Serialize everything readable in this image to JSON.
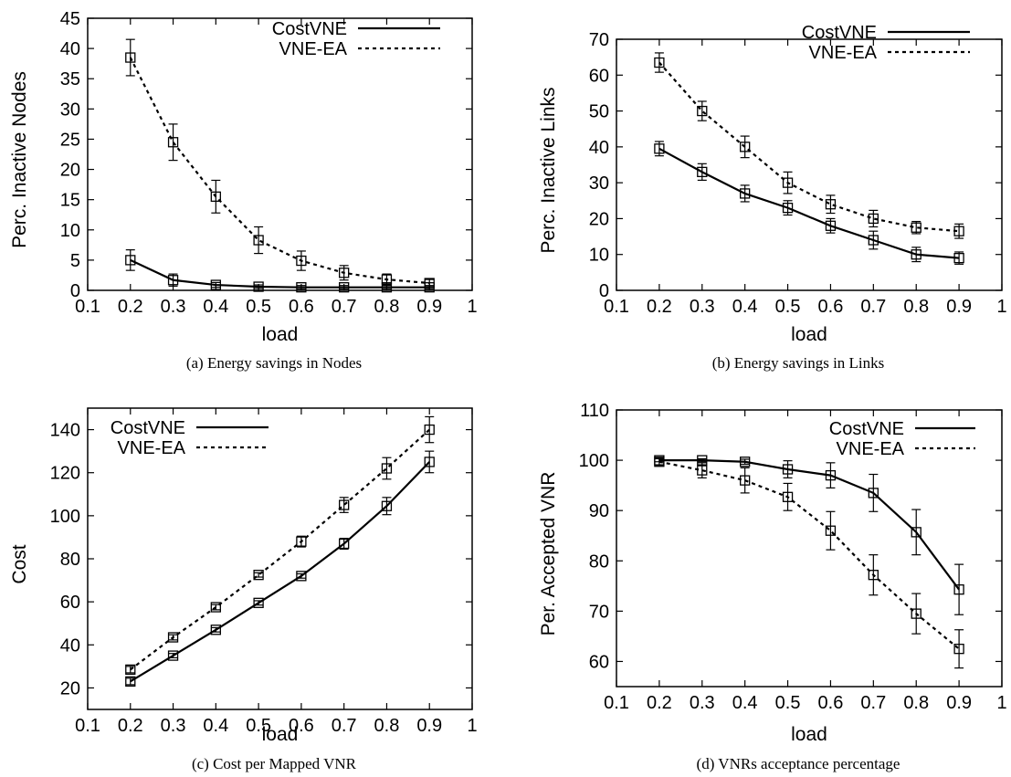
{
  "chart_data": [
    {
      "type": "line",
      "caption": "(a) Energy savings in Nodes",
      "xlabel": "load",
      "ylabel": "Perc. Inactive Nodes",
      "xlim": [
        0.1,
        1
      ],
      "ylim": [
        0,
        45
      ],
      "xticks": [
        "0.1",
        "0.2",
        "0.3",
        "0.4",
        "0.5",
        "0.6",
        "0.7",
        "0.8",
        "0.9",
        "1"
      ],
      "yticks": [
        "0",
        "5",
        "10",
        "15",
        "20",
        "25",
        "30",
        "35",
        "40",
        "45"
      ],
      "legend_position": "top-right",
      "x": [
        0.2,
        0.3,
        0.4,
        0.5,
        0.6,
        0.7,
        0.8,
        0.9
      ],
      "series": [
        {
          "name": "CostVNE",
          "style": "solid",
          "values": [
            5.0,
            1.7,
            0.9,
            0.6,
            0.5,
            0.5,
            0.5,
            0.5
          ],
          "errors": [
            1.7,
            1.0,
            0.4,
            0.3,
            0.3,
            0.3,
            0.3,
            0.3
          ]
        },
        {
          "name": "VNE-EA",
          "style": "dotted",
          "values": [
            38.5,
            24.5,
            15.5,
            8.3,
            4.9,
            2.9,
            1.8,
            1.2
          ],
          "errors": [
            3.0,
            3.0,
            2.7,
            2.2,
            1.6,
            1.2,
            0.9,
            0.6
          ]
        }
      ]
    },
    {
      "type": "line",
      "caption": "(b) Energy savings in Links",
      "xlabel": "load",
      "ylabel": "Perc. Inactive Links",
      "xlim": [
        0.1,
        1
      ],
      "ylim": [
        0,
        70
      ],
      "xticks": [
        "0.1",
        "0.2",
        "0.3",
        "0.4",
        "0.5",
        "0.6",
        "0.7",
        "0.8",
        "0.9",
        "1"
      ],
      "yticks": [
        "0",
        "10",
        "20",
        "30",
        "40",
        "50",
        "60",
        "70"
      ],
      "legend_position": "top-right",
      "x": [
        0.2,
        0.3,
        0.4,
        0.5,
        0.6,
        0.7,
        0.8,
        0.9
      ],
      "series": [
        {
          "name": "CostVNE",
          "style": "solid",
          "values": [
            39.5,
            33.0,
            27.0,
            23.0,
            18.0,
            14.0,
            10.0,
            9.0
          ],
          "errors": [
            2.0,
            2.3,
            2.3,
            2.0,
            2.0,
            2.5,
            2.0,
            1.7
          ]
        },
        {
          "name": "VNE-EA",
          "style": "dotted",
          "values": [
            63.5,
            50.0,
            40.0,
            30.0,
            24.0,
            20.0,
            17.5,
            16.5
          ],
          "errors": [
            2.7,
            2.7,
            3.0,
            3.0,
            2.5,
            2.3,
            1.7,
            2.0
          ]
        }
      ]
    },
    {
      "type": "line",
      "caption": "(c) Cost per Mapped VNR",
      "xlabel": "load",
      "ylabel": "Cost",
      "xlim": [
        0.1,
        1
      ],
      "ylim": [
        10,
        150
      ],
      "xticks": [
        "0.1",
        "0.2",
        "0.3",
        "0.4",
        "0.5",
        "0.6",
        "0.7",
        "0.8",
        "0.9",
        "1"
      ],
      "yticks": [
        "20",
        "40",
        "60",
        "80",
        "100",
        "120",
        "140"
      ],
      "legend_position": "top-left",
      "x": [
        0.2,
        0.3,
        0.4,
        0.5,
        0.6,
        0.7,
        0.8,
        0.9
      ],
      "series": [
        {
          "name": "CostVNE",
          "style": "solid",
          "values": [
            23.0,
            35.0,
            47.0,
            59.5,
            72.0,
            87.0,
            104.5,
            125.0
          ],
          "errors": [
            1.5,
            1.0,
            1.0,
            1.0,
            1.0,
            2.5,
            4.0,
            5.0
          ]
        },
        {
          "name": "VNE-EA",
          "style": "dotted",
          "values": [
            28.5,
            43.5,
            57.5,
            72.5,
            88.0,
            105.0,
            122.0,
            140.0
          ],
          "errors": [
            1.5,
            1.2,
            1.2,
            1.0,
            2.5,
            3.5,
            5.0,
            6.0
          ]
        }
      ]
    },
    {
      "type": "line",
      "caption": "(d) VNRs acceptance percentage",
      "xlabel": "load",
      "ylabel": "Per. Accepted VNR",
      "xlim": [
        0.1,
        1
      ],
      "ylim": [
        55,
        110
      ],
      "xticks": [
        "0.1",
        "0.2",
        "0.3",
        "0.4",
        "0.5",
        "0.6",
        "0.7",
        "0.8",
        "0.9",
        "1"
      ],
      "yticks": [
        "60",
        "70",
        "80",
        "90",
        "100",
        "110"
      ],
      "legend_position": "top-right",
      "x": [
        0.2,
        0.3,
        0.4,
        0.5,
        0.6,
        0.7,
        0.8,
        0.9
      ],
      "series": [
        {
          "name": "CostVNE",
          "style": "solid",
          "values": [
            100.0,
            100.0,
            99.7,
            98.2,
            97.0,
            93.5,
            85.7,
            74.3
          ],
          "errors": [
            0.3,
            0.3,
            0.5,
            1.7,
            2.5,
            3.7,
            4.5,
            5.0
          ]
        },
        {
          "name": "VNE-EA",
          "style": "dotted",
          "values": [
            99.7,
            98.0,
            96.0,
            92.7,
            86.0,
            77.2,
            69.5,
            62.5
          ],
          "errors": [
            0.7,
            1.5,
            2.5,
            2.7,
            3.8,
            4.0,
            4.0,
            3.8
          ]
        }
      ]
    }
  ]
}
